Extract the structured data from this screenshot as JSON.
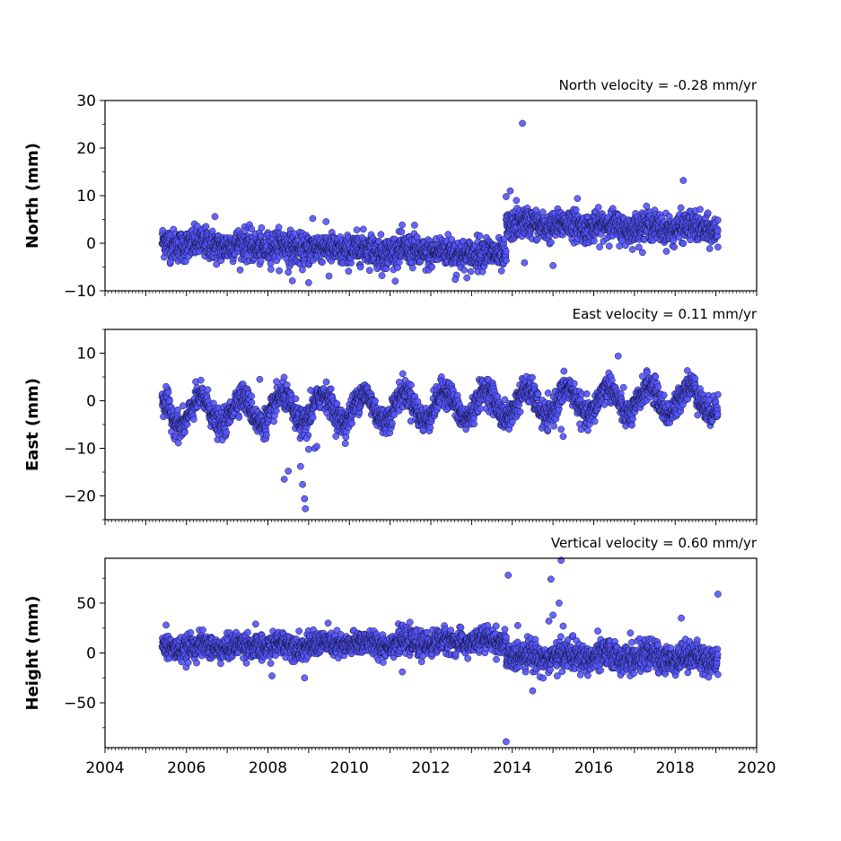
{
  "chart_data": [
    {
      "type": "scatter",
      "title": "North velocity = -0.28 mm/yr",
      "ylabel": "North (mm)",
      "xlim": [
        2004,
        2020
      ],
      "ylim": [
        -10,
        30
      ],
      "yticks": [
        -10,
        0,
        10,
        20,
        30
      ],
      "xtick_labels_visible": false,
      "marker_color": "#5555ff",
      "segments": [
        {
          "from": 2005.4,
          "to": 2013.85,
          "level_start": 0.0,
          "level_end": -2.4,
          "spread": 1.6,
          "seasonal": 0.5
        },
        {
          "from": 2013.85,
          "to": 2019.05,
          "level_start": 4.0,
          "level_end": 3.0,
          "spread": 1.5,
          "seasonal": 0.6
        }
      ],
      "outliers": [
        {
          "x": 2014.25,
          "y": 25.2
        },
        {
          "x": 2018.2,
          "y": 13.2
        },
        {
          "x": 2013.95,
          "y": 11.0
        },
        {
          "x": 2013.85,
          "y": 9.8
        },
        {
          "x": 2015.6,
          "y": 9.4
        },
        {
          "x": 2014.1,
          "y": 9.0
        },
        {
          "x": 2006.7,
          "y": 5.6
        },
        {
          "x": 2009.1,
          "y": 5.2
        },
        {
          "x": 2011.6,
          "y": 3.8
        },
        {
          "x": 2008.5,
          "y": -6.1
        },
        {
          "x": 2008.6,
          "y": -7.9
        },
        {
          "x": 2009.0,
          "y": -8.3
        },
        {
          "x": 2009.5,
          "y": -6.9
        },
        {
          "x": 2010.8,
          "y": -6.8
        },
        {
          "x": 2012.6,
          "y": -7.6
        },
        {
          "x": 2014.3,
          "y": -4.1
        },
        {
          "x": 2015.0,
          "y": -4.7
        },
        {
          "x": 2005.6,
          "y": -3.9
        },
        {
          "x": 2019.05,
          "y": -0.8
        }
      ]
    },
    {
      "type": "scatter",
      "title": "East velocity = 0.11 mm/yr",
      "ylabel": "East (mm)",
      "xlim": [
        2004,
        2020
      ],
      "ylim": [
        -25,
        15
      ],
      "yticks": [
        -20,
        -10,
        0,
        10
      ],
      "xtick_labels_visible": false,
      "marker_color": "#5555ff",
      "segments": [
        {
          "from": 2005.4,
          "to": 2019.05,
          "level_start": -2.5,
          "level_end": 0.5,
          "spread": 1.4,
          "seasonal": 3.0
        }
      ],
      "outliers": [
        {
          "x": 2008.4,
          "y": -16.5
        },
        {
          "x": 2008.5,
          "y": -14.8
        },
        {
          "x": 2008.8,
          "y": -13.8
        },
        {
          "x": 2008.85,
          "y": -17.6
        },
        {
          "x": 2008.9,
          "y": -20.6
        },
        {
          "x": 2008.92,
          "y": -22.7
        },
        {
          "x": 2009.0,
          "y": -10.2
        },
        {
          "x": 2009.15,
          "y": -10.0
        },
        {
          "x": 2009.2,
          "y": -9.6
        },
        {
          "x": 2008.95,
          "y": -7.9
        },
        {
          "x": 2009.9,
          "y": -9.0
        },
        {
          "x": 2016.6,
          "y": 9.4
        },
        {
          "x": 2007.8,
          "y": 4.5
        },
        {
          "x": 2015.25,
          "y": -7.5
        },
        {
          "x": 2015.2,
          "y": -6.0
        },
        {
          "x": 2005.5,
          "y": 3.0
        },
        {
          "x": 2009.05,
          "y": 2.2
        }
      ]
    },
    {
      "type": "scatter",
      "title": "Vertical velocity = 0.60 mm/yr",
      "ylabel": "Height (mm)",
      "xlim": [
        2004,
        2020
      ],
      "ylim": [
        -95,
        95
      ],
      "yticks": [
        -50,
        0,
        50
      ],
      "xticks": [
        2004,
        2006,
        2008,
        2010,
        2012,
        2014,
        2016,
        2018,
        2020
      ],
      "xtick_labels_visible": true,
      "marker_color": "#5555ff",
      "segments": [
        {
          "from": 2005.4,
          "to": 2013.85,
          "level_start": 5.0,
          "level_end": 12.0,
          "spread": 6.0,
          "seasonal": 2.5
        },
        {
          "from": 2013.85,
          "to": 2019.05,
          "level_start": -3.0,
          "level_end": -5.0,
          "spread": 7.0,
          "seasonal": 3.0
        }
      ],
      "outliers": [
        {
          "x": 2013.9,
          "y": 78.0
        },
        {
          "x": 2014.95,
          "y": 74.0
        },
        {
          "x": 2015.2,
          "y": 93.0
        },
        {
          "x": 2015.15,
          "y": 50.0
        },
        {
          "x": 2015.0,
          "y": 38.0
        },
        {
          "x": 2014.9,
          "y": 32.0
        },
        {
          "x": 2015.25,
          "y": 27.0
        },
        {
          "x": 2018.15,
          "y": 35.0
        },
        {
          "x": 2019.05,
          "y": 59.0
        },
        {
          "x": 2013.85,
          "y": -89.0
        },
        {
          "x": 2014.5,
          "y": -38.0
        },
        {
          "x": 2008.9,
          "y": -25.0
        },
        {
          "x": 2008.1,
          "y": -23.0
        },
        {
          "x": 2011.3,
          "y": -19.0
        },
        {
          "x": 2005.5,
          "y": 28.0
        },
        {
          "x": 2007.7,
          "y": 29.0
        },
        {
          "x": 2016.1,
          "y": 22.0
        },
        {
          "x": 2016.9,
          "y": 20.0
        }
      ]
    }
  ]
}
